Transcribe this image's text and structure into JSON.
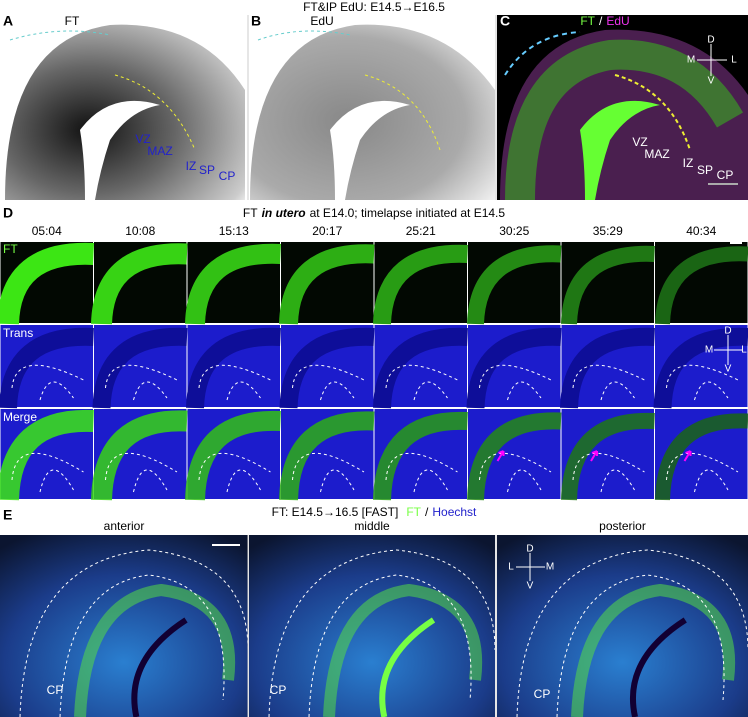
{
  "figure_title": "FT&IP EdU: E14.5→E16.5",
  "panel_a": {
    "label": "A",
    "title": "FT",
    "regions": [
      "VZ",
      "MAZ",
      "IZ",
      "SP",
      "CP"
    ]
  },
  "panel_b": {
    "label": "B",
    "title": "EdU"
  },
  "panel_c": {
    "label": "C",
    "title_parts": [
      "FT",
      "/",
      "EdU"
    ],
    "orientation": [
      "D",
      "M",
      "L",
      "V"
    ],
    "regions": [
      "VZ",
      "MAZ",
      "IZ",
      "SP",
      "CP"
    ]
  },
  "panel_d": {
    "label": "D",
    "title_parts": [
      "FT",
      "in utero",
      "at  E14.0; timelapse initiated at E14.5"
    ],
    "times": [
      "05:04",
      "10:08",
      "15:13",
      "20:17",
      "25:21",
      "30:25",
      "35:29",
      "40:34"
    ],
    "rows": [
      "FT",
      "Trans",
      "Merge"
    ],
    "orientation": [
      "D",
      "M",
      "L",
      "V"
    ]
  },
  "panel_e": {
    "label": "E",
    "title_parts": [
      "FT: E14.5→16.5 [FAST]",
      "FT",
      "/",
      "Hoechst"
    ],
    "sections": [
      "anterior",
      "middle",
      "posterior"
    ],
    "region": "CP",
    "orientation": [
      "D",
      "L",
      "M",
      "V"
    ]
  }
}
